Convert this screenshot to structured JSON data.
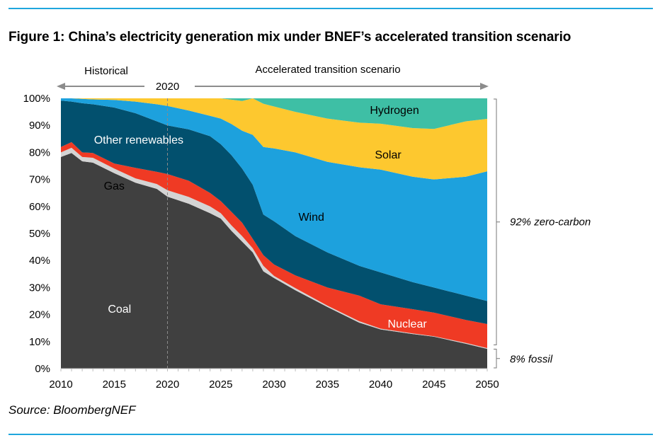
{
  "figure": {
    "title": "Figure 1:  China’s electricity generation mix under BNEF’s accelerated transition scenario",
    "source": "Source: BloombergNEF"
  },
  "chart_data": {
    "type": "area",
    "stacked": true,
    "title": "Figure 1:  China’s electricity generation mix under BNEF’s accelerated transition scenario",
    "xlabel": "",
    "ylabel": "",
    "xlim": [
      2010,
      2050
    ],
    "ylim": [
      0,
      100
    ],
    "x_ticks": [
      "2010",
      "2015",
      "2020",
      "2025",
      "2030",
      "2035",
      "2040",
      "2045",
      "2050"
    ],
    "y_ticks": [
      "0%",
      "10%",
      "20%",
      "30%",
      "40%",
      "50%",
      "60%",
      "70%",
      "80%",
      "90%",
      "100%"
    ],
    "grid": false,
    "legend": "inline labels",
    "x": [
      2010,
      2011,
      2012,
      2013,
      2015,
      2017,
      2019,
      2020,
      2022,
      2024,
      2025,
      2026,
      2027,
      2028,
      2029,
      2030,
      2032,
      2035,
      2038,
      2040,
      2043,
      2045,
      2048,
      2050
    ],
    "series": [
      {
        "name": "Coal",
        "label": "Coal",
        "color": "#404040",
        "label_color": "#ffffff",
        "values": [
          78.3,
          79.8,
          76.7,
          76.2,
          72.3,
          68.8,
          66.5,
          63.6,
          61.0,
          57.5,
          55.5,
          51.0,
          47.0,
          43.0,
          36.0,
          33.5,
          29.0,
          22.8,
          17.0,
          14.5,
          12.8,
          11.8,
          9.2,
          7.3
        ]
      },
      {
        "name": "Gas",
        "label": "Gas",
        "color": "#d4d4d4",
        "label_color": "#000000",
        "values": [
          1.7,
          1.9,
          1.6,
          1.8,
          1.7,
          1.6,
          1.8,
          2.4,
          2.5,
          2.5,
          2.0,
          2.0,
          2.0,
          1.5,
          2.0,
          0.8,
          0.8,
          0.5,
          0.5,
          0.3,
          0.2,
          0.2,
          0.3,
          0.3
        ]
      },
      {
        "name": "Nuclear",
        "label": "Nuclear",
        "color": "#ef3a24",
        "label_color": "#ffffff",
        "values": [
          2.0,
          2.1,
          1.7,
          1.8,
          1.9,
          3.9,
          4.5,
          6.0,
          6.0,
          5.0,
          4.5,
          5.0,
          5.0,
          3.5,
          4.0,
          4.2,
          4.7,
          6.7,
          9.5,
          9.0,
          9.0,
          8.7,
          8.5,
          8.9
        ]
      },
      {
        "name": "Other renewables",
        "label": "Other renewables",
        "color": "#02506e",
        "label_color": "#ffffff",
        "values": [
          17.2,
          15.0,
          18.2,
          18.0,
          20.7,
          20.2,
          18.7,
          18.0,
          19.0,
          21.0,
          21.0,
          21.0,
          20.0,
          20.0,
          15.0,
          16.0,
          14.5,
          13.0,
          11.0,
          11.8,
          10.0,
          9.3,
          9.0,
          8.5
        ]
      },
      {
        "name": "Wind",
        "label": "Wind",
        "color": "#1da1dd",
        "label_color": "#000000",
        "values": [
          0.8,
          1.2,
          1.6,
          1.8,
          2.8,
          4.3,
          6.3,
          7.2,
          7.0,
          7.5,
          9.5,
          11.5,
          14.0,
          18.5,
          25.0,
          27.0,
          31.0,
          33.5,
          36.5,
          38.0,
          39.0,
          40.0,
          44.0,
          48.0
        ]
      },
      {
        "name": "Solar",
        "label": "Solar",
        "color": "#fdc82f",
        "label_color": "#000000",
        "values": [
          0.0,
          0.0,
          0.2,
          0.4,
          0.6,
          1.2,
          2.2,
          2.8,
          4.5,
          6.5,
          7.5,
          9.0,
          11.0,
          13.5,
          16.0,
          15.5,
          15.0,
          16.0,
          16.5,
          17.0,
          18.0,
          18.7,
          20.5,
          19.4
        ]
      },
      {
        "name": "Hydrogen",
        "label": "Hydrogen",
        "color": "#3ebfa5",
        "label_color": "#000000",
        "values": [
          0.0,
          0.0,
          0.0,
          0.0,
          0.0,
          0.0,
          0.0,
          0.0,
          0.0,
          0.0,
          0.0,
          0.5,
          1.0,
          1.5,
          2.0,
          3.0,
          5.0,
          7.5,
          9.0,
          9.4,
          11.0,
          11.3,
          8.5,
          7.6
        ]
      }
    ],
    "annotations": {
      "historical": "Historical",
      "scenario": "Accelerated transition scenario",
      "divider_year": "2020",
      "divider_x": 2020,
      "zero_carbon": "92% zero-carbon",
      "fossil": "8% fossil"
    }
  }
}
